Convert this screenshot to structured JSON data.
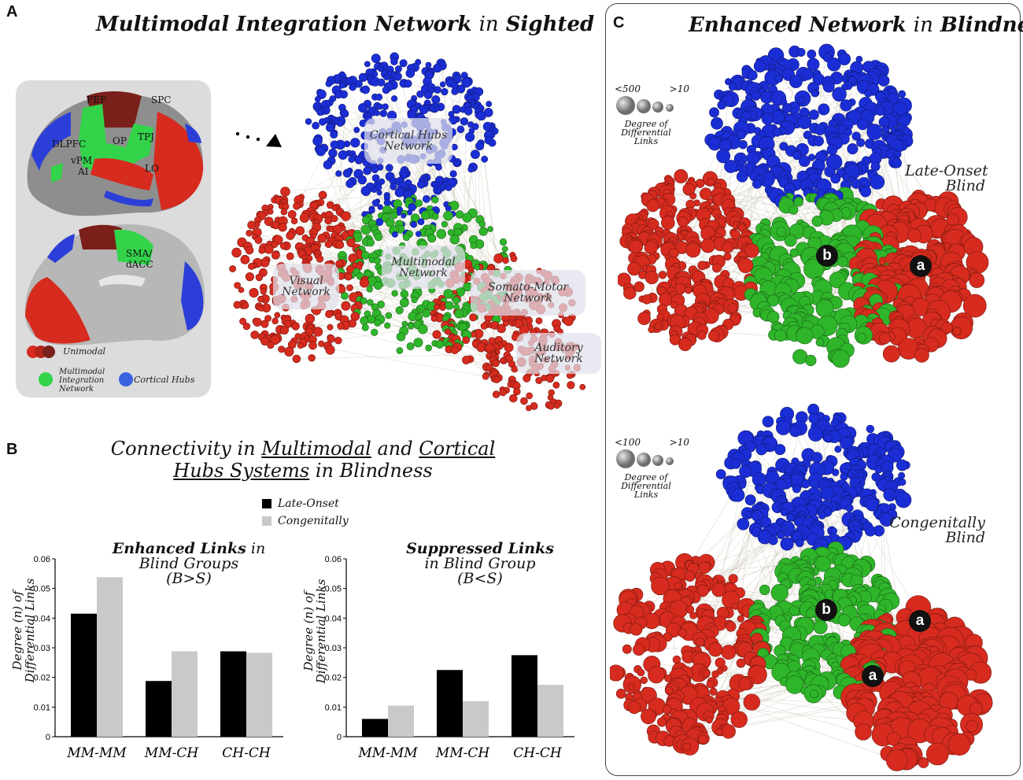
{
  "panelA": {
    "letter": "A",
    "title_part1": "Multimodal Integration Network",
    "title_part2": "in",
    "title_part3": "Sighted",
    "brain_labels": {
      "fef": "FEF",
      "spc": "SPC",
      "dlpfc": "DLPFC",
      "op": "OP",
      "tpj": "TPJ",
      "vpm": "vPM",
      "ai": "AI",
      "lo": "LO",
      "sma": "SMA/",
      "dacc": "dACC"
    },
    "legend": {
      "unimodal": "Unimodal",
      "multimodal": "Multimodal\nIntegration\nNetwork",
      "hubs": "Cortical Hubs"
    },
    "network_labels": {
      "hubs": "Cortical Hubs\nNetwork",
      "visual": "Visual\nNetwork",
      "multimodal": "Multimodal\nNetwork",
      "somato": "Somato-Motor\nNetwork",
      "auditory": "Auditory\nNetwork"
    },
    "colors": {
      "red": "#d62b1e",
      "green": "#2fb52a",
      "blue": "#1b2ed6"
    }
  },
  "panelB": {
    "letter": "B",
    "title_line1_a": "Connectivity in",
    "title_line1_b": "Multimodal",
    "title_line1_c": "and",
    "title_line1_d": "Cortical",
    "title_line2_a": "Hubs Systems",
    "title_line2_b": "in Blindness",
    "legend_late": "Late-Onset",
    "legend_cong": "Congenitally",
    "colors": {
      "late": "#000000",
      "cong": "#c9c9c9"
    }
  },
  "chart_data": [
    {
      "type": "bar",
      "title_bold": "Enhanced Links",
      "title_rest": "in",
      "title_line2": "Blind Groups",
      "title_line3": "(B>S)",
      "ylabel": "Degree (n) of\nDifferential Links",
      "categories": [
        "MM-MM",
        "MM-CH",
        "CH-CH"
      ],
      "series": [
        {
          "name": "Late-Onset",
          "values": [
            0.0415,
            0.0188,
            0.0288
          ]
        },
        {
          "name": "Congenitally",
          "values": [
            0.0538,
            0.0288,
            0.0283
          ]
        }
      ],
      "ylim": [
        0,
        0.06
      ],
      "yticks": [
        "0",
        "0.01",
        "0.02",
        "0.03",
        "0.04",
        "0.05",
        "0.06"
      ]
    },
    {
      "type": "bar",
      "title_bold": "Suppressed Links",
      "title_rest": "",
      "title_line2": "in Blind Group",
      "title_line3": "(B<S)",
      "ylabel": "Degree (n) of\nDifferential Links",
      "categories": [
        "MM-MM",
        "MM-CH",
        "CH-CH"
      ],
      "series": [
        {
          "name": "Late-Onset",
          "values": [
            0.006,
            0.0225,
            0.0275
          ]
        },
        {
          "name": "Congenitally",
          "values": [
            0.0105,
            0.012,
            0.0175
          ]
        }
      ],
      "ylim": [
        0,
        0.06
      ],
      "yticks": [
        "0",
        "0.01",
        "0.02",
        "0.03",
        "0.04",
        "0.05",
        "0.06"
      ]
    }
  ],
  "panelC": {
    "letter": "C",
    "title_part1": "Enhanced Network",
    "title_part2": "in",
    "title_part3": "Blindness",
    "top": {
      "size_max": "<500",
      "size_min": ">10",
      "size_caption": "Degree of\nDifferential\nLinks",
      "group": "Late-Onset\nBlind",
      "badge_b": "b",
      "badge_a": "a"
    },
    "bottom": {
      "size_max": "<100",
      "size_min": ">10",
      "size_caption": "Degree of\nDifferential\nLinks",
      "group": "Congenitally\nBlind",
      "badge_b": "b",
      "badge_a1": "a",
      "badge_a2": "a"
    }
  }
}
